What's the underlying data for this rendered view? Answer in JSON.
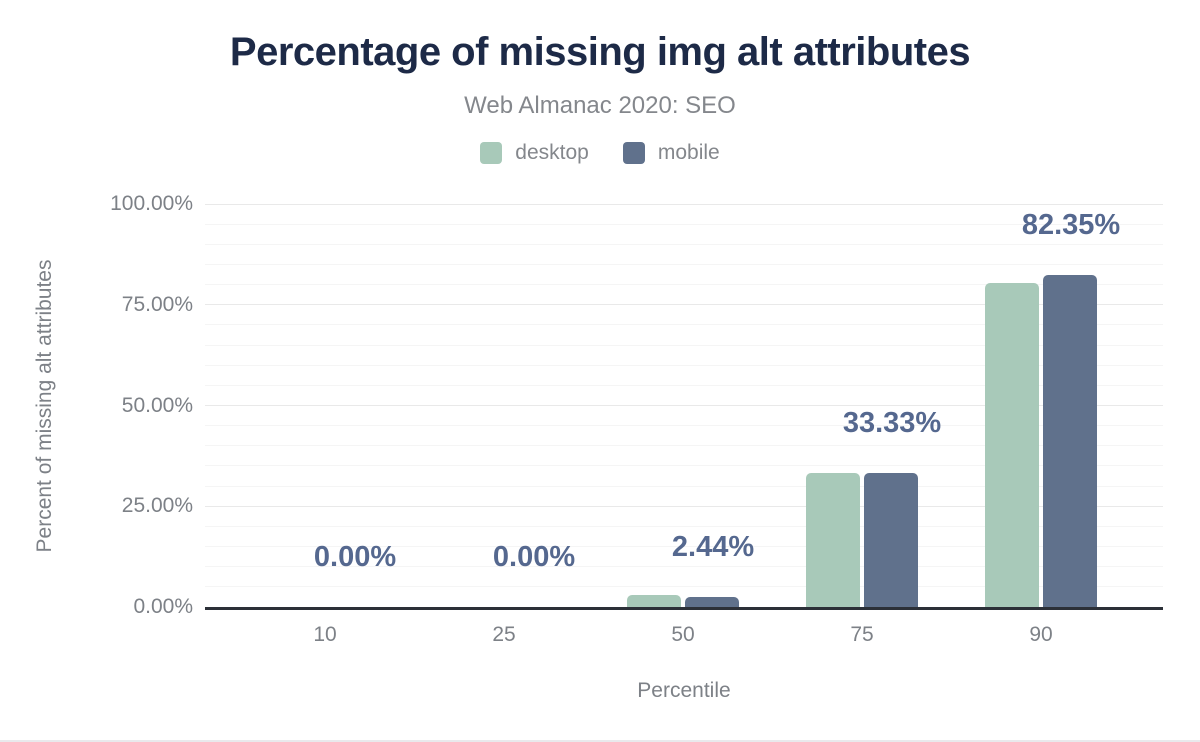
{
  "chart_data": {
    "type": "bar",
    "title": "Percentage of missing img alt attributes",
    "subtitle": "Web Almanac 2020: SEO",
    "categories": [
      "10",
      "25",
      "50",
      "75",
      "90"
    ],
    "series": [
      {
        "name": "desktop",
        "color": "#a8c9b9",
        "values": [
          0,
          0,
          2.99,
          33.33,
          80.4
        ]
      },
      {
        "name": "mobile",
        "color": "#60718c",
        "values": [
          0,
          0,
          2.44,
          33.33,
          82.35
        ]
      }
    ],
    "data_labels": [
      "0.00%",
      "0.00%",
      "2.44%",
      "33.33%",
      "82.35%"
    ],
    "data_labels_follow_series": "mobile",
    "xlabel": "Percentile",
    "ylabel": "Percent of missing alt attributes",
    "ylim": [
      0,
      100
    ],
    "ytick_values": [
      0,
      25,
      50,
      75,
      100
    ],
    "ytick_labels": [
      "0.00%",
      "25.00%",
      "50.00%",
      "75.00%",
      "100.00%"
    ],
    "minor_grid_step_pct": 5,
    "grid": "horizontal",
    "legend_position": "top-center"
  },
  "colors": {
    "title": "#1d2a47",
    "subtitle_text": "#84878c",
    "axis_text": "#7d8187",
    "data_label": "#55688f",
    "axis_line": "#2c3038",
    "grid_major": "#e9e9e9",
    "grid_minor": "#f5f5f5",
    "desktop": "#a8c9b9",
    "mobile": "#60718c",
    "background": "#ffffff"
  }
}
